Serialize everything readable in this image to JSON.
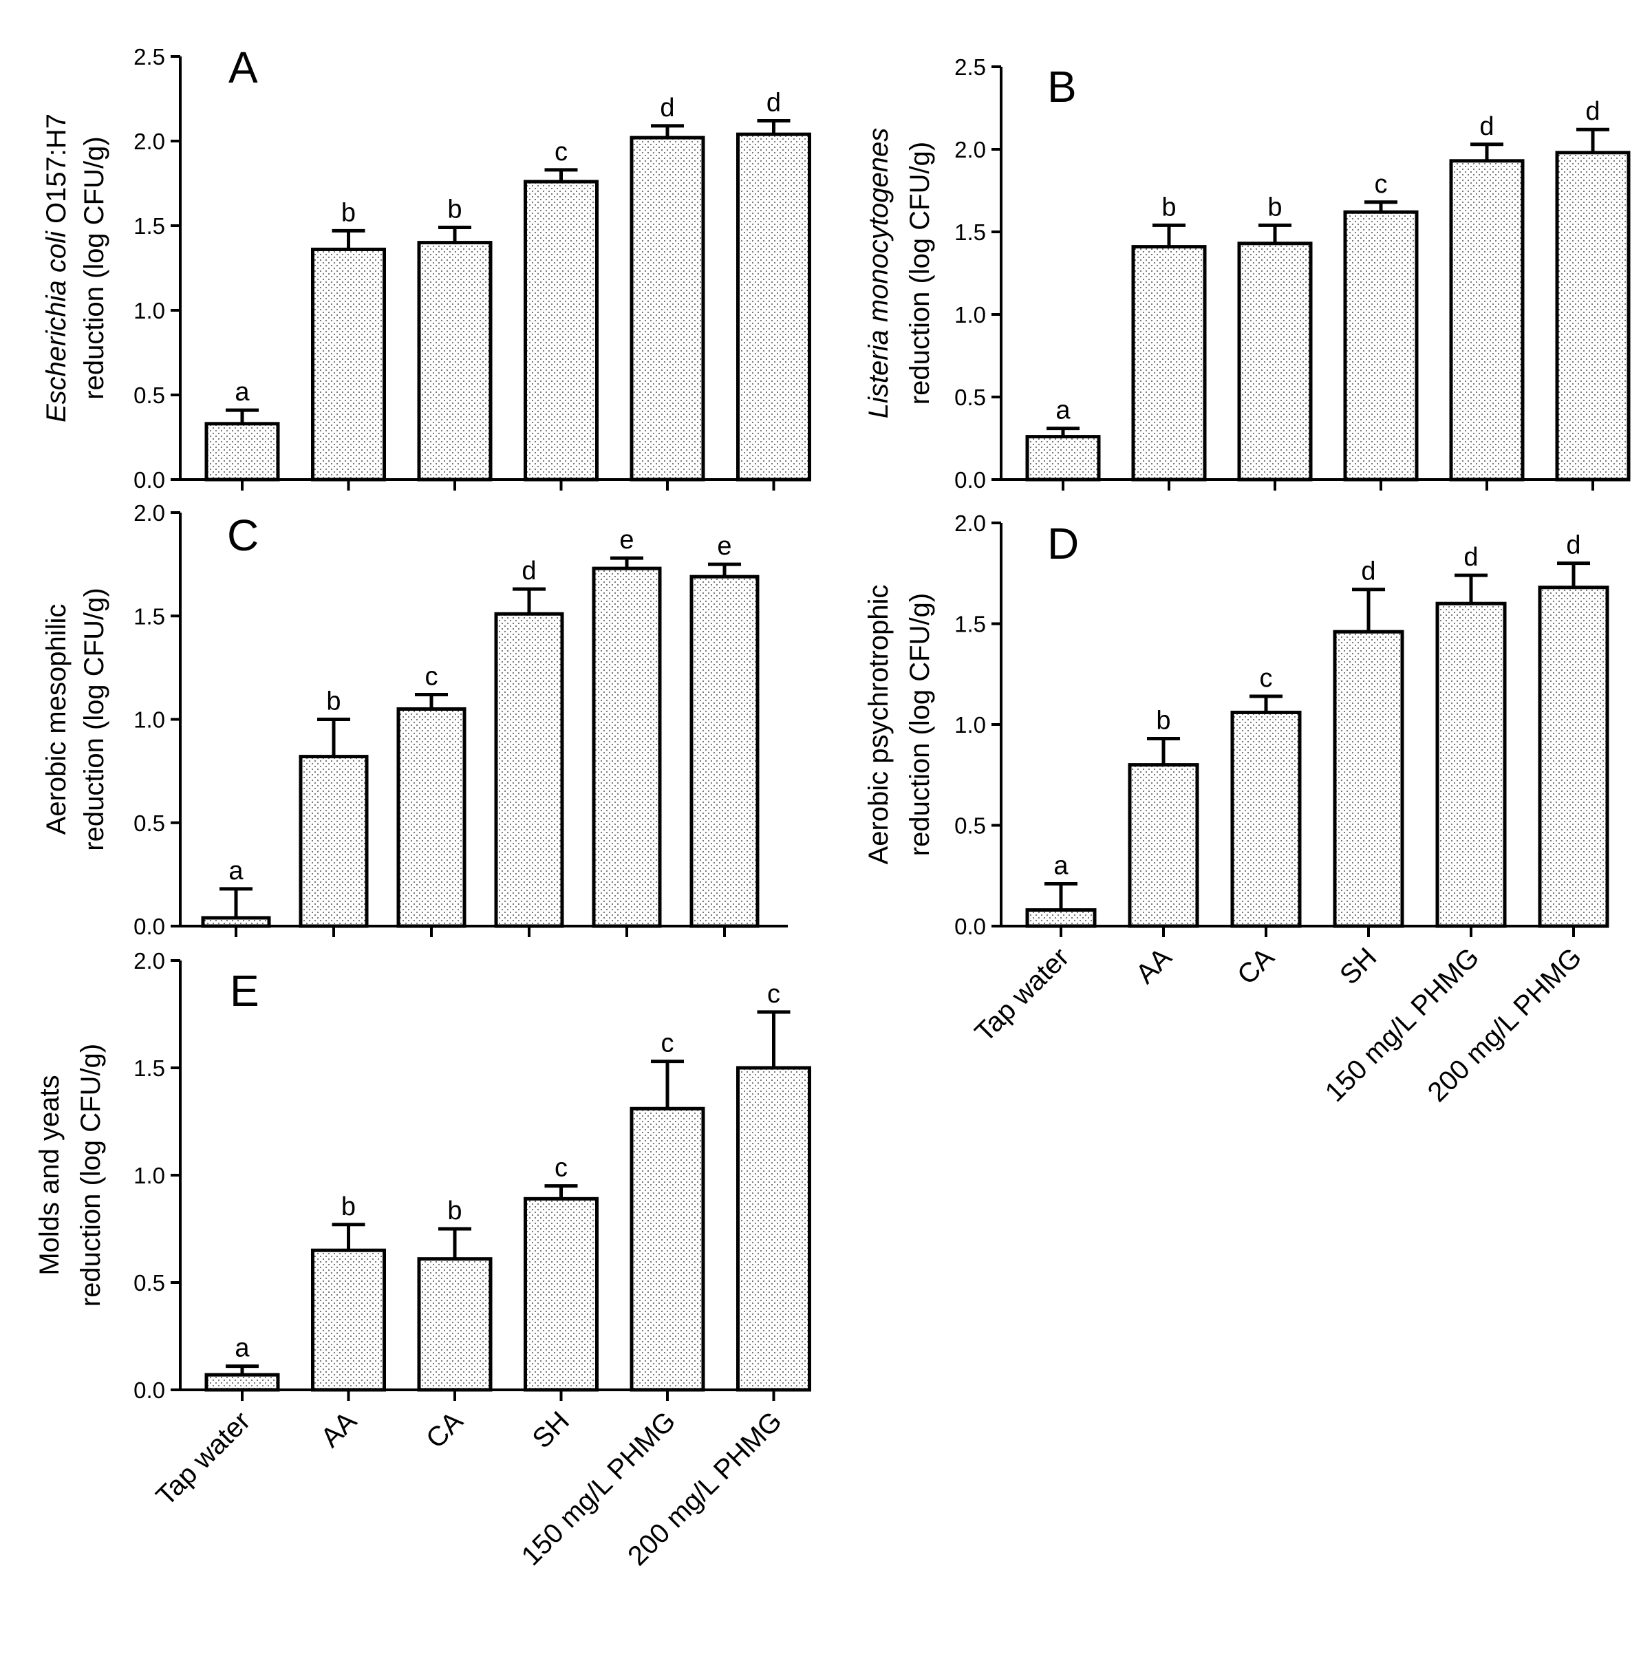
{
  "chart_data": [
    {
      "type": "bar",
      "panel": "A",
      "ylabel_italic": "Escherichia coli",
      "ylabel_rest": " O157:H7",
      "ylabel_line2": "reduction (log CFU/g)",
      "categories": [
        "Tap water",
        "AA",
        "CA",
        "SH",
        "150 mg/L PHMG",
        "200 mg/L PHMG"
      ],
      "values": [
        0.33,
        1.36,
        1.4,
        1.76,
        2.02,
        2.04
      ],
      "errors": [
        0.08,
        0.11,
        0.09,
        0.07,
        0.07,
        0.08
      ],
      "letters": [
        "a",
        "b",
        "b",
        "c",
        "d",
        "d"
      ],
      "ylim": [
        0,
        2.5
      ],
      "yticks": [
        "0.0",
        "0.5",
        "1.0",
        "1.5",
        "2.0",
        "2.5"
      ],
      "show_category_labels": false
    },
    {
      "type": "bar",
      "panel": "B",
      "ylabel_italic": "Listeria monocytogenes",
      "ylabel_rest": "",
      "ylabel_line2": "reduction (log CFU/g)",
      "categories": [
        "Tap water",
        "AA",
        "CA",
        "SH",
        "150 mg/L PHMG",
        "200 mg/L PHMG"
      ],
      "values": [
        0.26,
        1.41,
        1.43,
        1.62,
        1.93,
        1.98
      ],
      "errors": [
        0.05,
        0.13,
        0.11,
        0.06,
        0.1,
        0.14
      ],
      "letters": [
        "a",
        "b",
        "b",
        "c",
        "d",
        "d"
      ],
      "ylim": [
        0,
        2.5
      ],
      "yticks": [
        "0.0",
        "0.5",
        "1.0",
        "1.5",
        "2.0",
        "2.5"
      ],
      "show_category_labels": false
    },
    {
      "type": "bar",
      "panel": "C",
      "ylabel_italic": "",
      "ylabel_rest": "Aerobic mesophilic",
      "ylabel_line2": "reduction (log CFU/g)",
      "categories": [
        "Tap water",
        "AA",
        "CA",
        "SH",
        "150 mg/L PHMG",
        "200 mg/L PHMG"
      ],
      "values": [
        0.04,
        0.82,
        1.05,
        1.51,
        1.73,
        1.69
      ],
      "errors": [
        0.14,
        0.18,
        0.07,
        0.12,
        0.05,
        0.06
      ],
      "letters": [
        "a",
        "b",
        "c",
        "d",
        "e",
        "e"
      ],
      "ylim": [
        0,
        2.0
      ],
      "yticks": [
        "0.0",
        "0.5",
        "1.0",
        "1.5",
        "2.0"
      ],
      "show_category_labels": false
    },
    {
      "type": "bar",
      "panel": "D",
      "ylabel_italic": "",
      "ylabel_rest": "Aerobic psychrotrophic",
      "ylabel_line2": "reduction (log CFU/g)",
      "categories": [
        "Tap water",
        "AA",
        "CA",
        "SH",
        "150 mg/L PHMG",
        "200 mg/L PHMG"
      ],
      "values": [
        0.08,
        0.8,
        1.06,
        1.46,
        1.6,
        1.68
      ],
      "errors": [
        0.13,
        0.13,
        0.08,
        0.21,
        0.14,
        0.12
      ],
      "letters": [
        "a",
        "b",
        "c",
        "d",
        "d",
        "d"
      ],
      "ylim": [
        0,
        2.0
      ],
      "yticks": [
        "0.0",
        "0.5",
        "1.0",
        "1.5",
        "2.0"
      ],
      "show_category_labels": true
    },
    {
      "type": "bar",
      "panel": "E",
      "ylabel_italic": "",
      "ylabel_rest": "Molds and yeats",
      "ylabel_line2": "reduction (log CFU/g)",
      "categories": [
        "Tap water",
        "AA",
        "CA",
        "SH",
        "150 mg/L PHMG",
        "200 mg/L PHMG"
      ],
      "values": [
        0.07,
        0.65,
        0.61,
        0.89,
        1.31,
        1.5
      ],
      "errors": [
        0.04,
        0.12,
        0.14,
        0.06,
        0.22,
        0.26
      ],
      "letters": [
        "a",
        "b",
        "b",
        "c",
        "c",
        "c"
      ],
      "ylim": [
        0,
        2.0
      ],
      "yticks": [
        "0.0",
        "0.5",
        "1.0",
        "1.5",
        "2.0"
      ],
      "show_category_labels": true
    }
  ]
}
